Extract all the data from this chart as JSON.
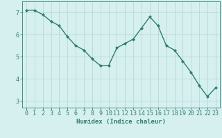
{
  "x": [
    0,
    1,
    2,
    3,
    4,
    5,
    6,
    7,
    8,
    9,
    10,
    11,
    12,
    13,
    14,
    15,
    16,
    17,
    18,
    19,
    20,
    21,
    22,
    23
  ],
  "y": [
    7.1,
    7.1,
    6.9,
    6.6,
    6.4,
    5.9,
    5.5,
    5.3,
    4.9,
    4.6,
    4.6,
    5.4,
    5.6,
    5.8,
    6.3,
    6.8,
    6.4,
    5.5,
    5.3,
    4.8,
    4.3,
    3.7,
    3.2,
    3.6
  ],
  "line_color": "#2e7d6e",
  "marker": "D",
  "marker_size": 2,
  "bg_color": "#d6f0f0",
  "grid_color": "#b8d8d8",
  "xlabel": "Humidex (Indice chaleur)",
  "xlabel_fontsize": 6.5,
  "tick_fontsize": 6,
  "yticks": [
    3,
    4,
    5,
    6,
    7
  ],
  "ylim": [
    2.7,
    7.5
  ],
  "xlim": [
    -0.5,
    23.5
  ]
}
